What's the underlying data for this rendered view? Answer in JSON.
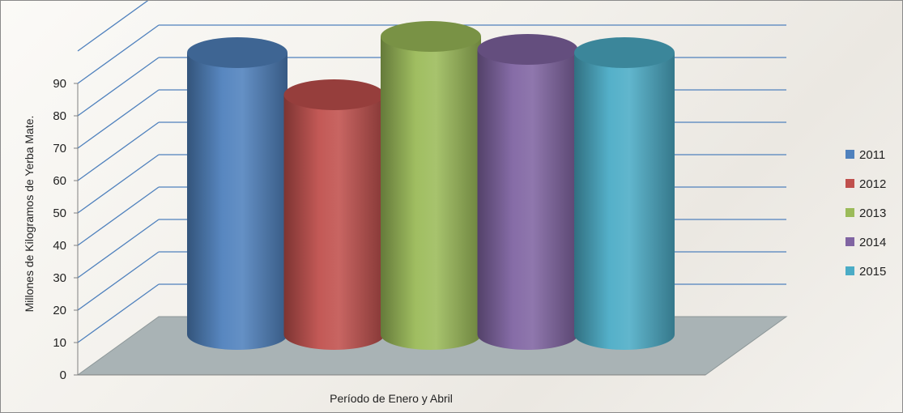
{
  "chart_data": {
    "type": "bar",
    "style": "3d-cylinder",
    "title": "",
    "xlabel": "Período de Enero y Abril",
    "ylabel": "Millones de Kilogramos de Yerba Mate.",
    "ylim": [
      0,
      90
    ],
    "yticks": [
      0,
      10,
      20,
      30,
      40,
      50,
      60,
      70,
      80,
      90
    ],
    "grid": true,
    "legend_position": "right",
    "series": [
      {
        "name": "2011",
        "value": 87,
        "color": "#4f81bd"
      },
      {
        "name": "2012",
        "value": 74,
        "color": "#c0504d"
      },
      {
        "name": "2013",
        "value": 92,
        "color": "#9bbb59"
      },
      {
        "name": "2014",
        "value": 88,
        "color": "#8064a2"
      },
      {
        "name": "2015",
        "value": 87,
        "color": "#4bacc6"
      }
    ],
    "colors": {
      "gridline": "#4f81bd",
      "floor": "#a9b3b5",
      "floor_edge": "#8c9698"
    }
  }
}
